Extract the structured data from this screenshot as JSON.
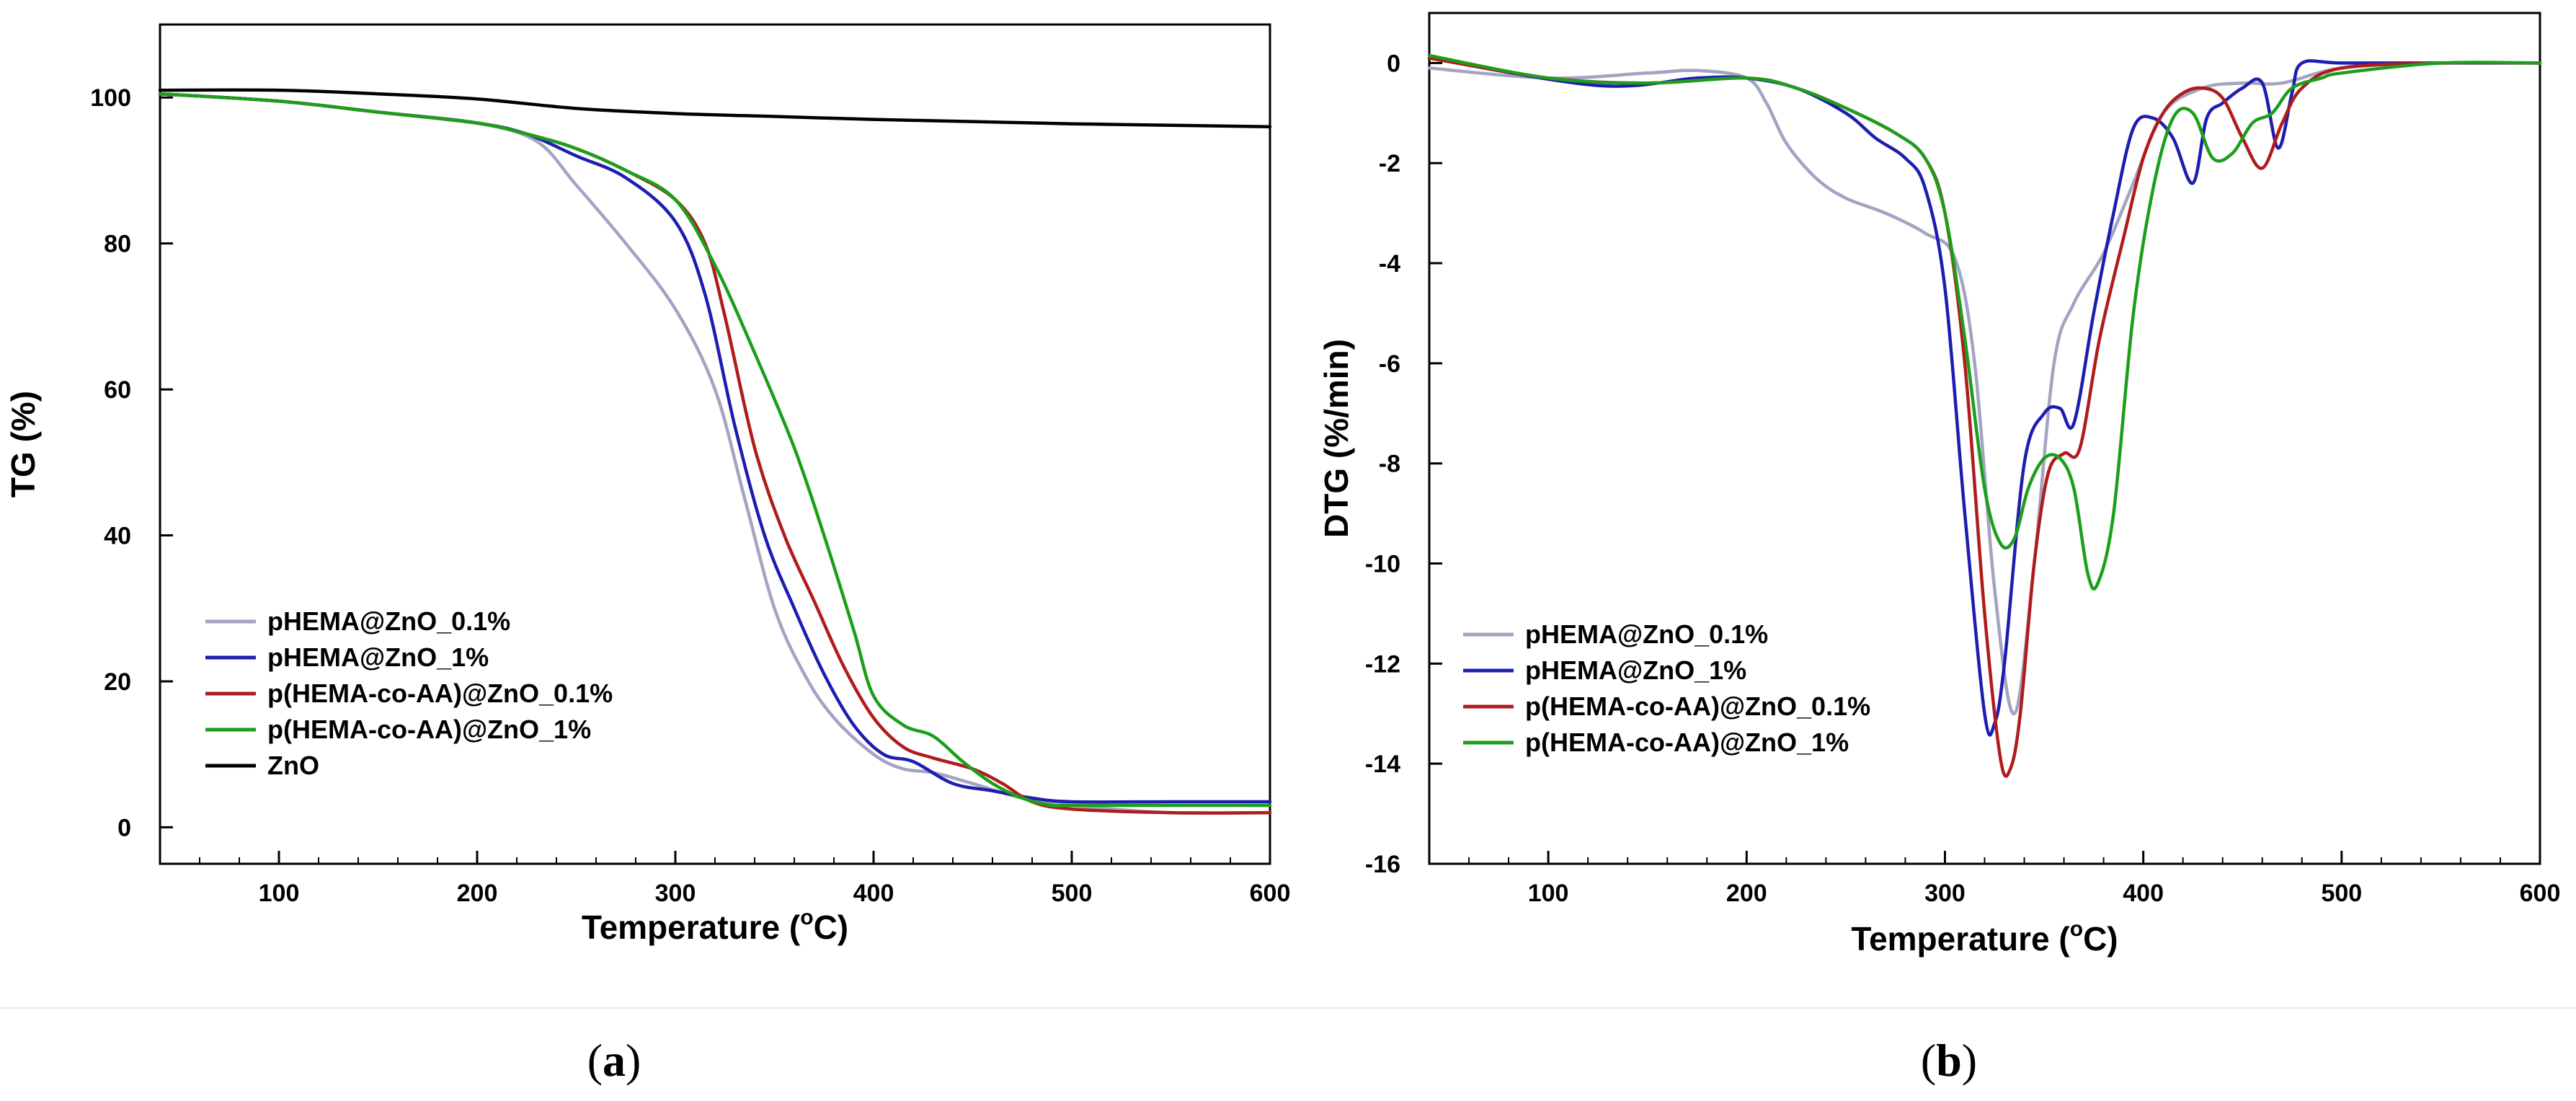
{
  "chart_data": [
    {
      "type": "line",
      "panel_label": "(a)",
      "panel_label_parts": [
        "(",
        "a",
        ")"
      ],
      "xlabel": "Temperature (",
      "xlabel_sup": "o",
      "xlabel_unit": "C)",
      "ylabel": "TG (%)",
      "xlim": [
        40,
        600
      ],
      "ylim": [
        -5,
        110
      ],
      "xticks": [
        100,
        200,
        300,
        400,
        500,
        600
      ],
      "yticks": [
        0,
        20,
        40,
        60,
        80,
        100
      ],
      "legend_position": "lower-left",
      "series": [
        {
          "name": "pHEMA@ZnO_0.1%",
          "color": "#a3a3c2",
          "x": [
            40,
            100,
            150,
            200,
            230,
            250,
            275,
            300,
            320,
            335,
            350,
            365,
            380,
            400,
            415,
            430,
            450,
            475,
            500,
            550,
            600
          ],
          "y": [
            100.5,
            99.5,
            98,
            96.5,
            94,
            88,
            80,
            71,
            60,
            45,
            30,
            21,
            15,
            10,
            8,
            7.5,
            6,
            4,
            3,
            2,
            2
          ]
        },
        {
          "name": "pHEMA@ZnO_1%",
          "color": "#1d1db0",
          "x": [
            40,
            100,
            150,
            200,
            225,
            250,
            275,
            300,
            315,
            330,
            345,
            360,
            375,
            390,
            405,
            420,
            440,
            460,
            480,
            500,
            550,
            600
          ],
          "y": [
            100.5,
            99.5,
            98,
            96.5,
            95,
            92,
            89,
            83,
            73,
            55,
            40,
            30,
            21,
            14,
            10,
            9,
            6,
            5,
            4,
            3.5,
            3.5,
            3.5
          ]
        },
        {
          "name": "p(HEMA-co-AA)@ZnO_0.1%",
          "color": "#b01c1c",
          "x": [
            40,
            100,
            150,
            200,
            225,
            250,
            275,
            300,
            315,
            325,
            340,
            355,
            370,
            385,
            400,
            415,
            430,
            450,
            465,
            480,
            500,
            550,
            600
          ],
          "y": [
            100.5,
            99.5,
            98,
            96.5,
            95,
            93,
            90,
            86,
            80,
            70,
            52,
            40,
            31,
            22,
            15,
            11,
            9.5,
            8,
            6,
            3.5,
            2.5,
            2,
            2
          ]
        },
        {
          "name": "p(HEMA-co-AA)@ZnO_1%",
          "color": "#1c9e1c",
          "x": [
            40,
            100,
            150,
            200,
            225,
            250,
            275,
            300,
            320,
            340,
            360,
            375,
            390,
            400,
            415,
            430,
            445,
            460,
            475,
            490,
            500,
            550,
            600
          ],
          "y": [
            100.5,
            99.5,
            98,
            96.5,
            95,
            93,
            90,
            86,
            77,
            65,
            52,
            40,
            27,
            18,
            14,
            12.5,
            9,
            6,
            4,
            3,
            3,
            3,
            3
          ]
        },
        {
          "name": "ZnO",
          "color": "#000000",
          "x": [
            40,
            100,
            150,
            200,
            250,
            300,
            350,
            400,
            450,
            500,
            550,
            600
          ],
          "y": [
            101,
            101,
            100.5,
            99.8,
            98.5,
            97.8,
            97.4,
            97,
            96.7,
            96.4,
            96.2,
            96
          ]
        }
      ]
    },
    {
      "type": "line",
      "panel_label": "(b)",
      "panel_label_parts": [
        "(",
        "b",
        ")"
      ],
      "xlabel": "Temperature (",
      "xlabel_sup": "o",
      "xlabel_unit": "C)",
      "ylabel": "DTG (%/min)",
      "xlim": [
        40,
        600
      ],
      "ylim": [
        -16,
        1
      ],
      "xticks": [
        100,
        200,
        300,
        400,
        500,
        600
      ],
      "yticks": [
        0,
        -2,
        -4,
        -6,
        -8,
        -10,
        -12,
        -14,
        -16
      ],
      "legend_position": "lower-left",
      "series": [
        {
          "name": "pHEMA@ZnO_0.1%",
          "color": "#a3a3c2",
          "x": [
            40,
            100,
            150,
            175,
            200,
            210,
            220,
            235,
            250,
            270,
            290,
            305,
            315,
            325,
            335,
            345,
            355,
            365,
            380,
            395,
            410,
            430,
            450,
            470,
            500,
            550,
            600
          ],
          "y": [
            -0.1,
            -0.3,
            -0.2,
            -0.15,
            -0.3,
            -0.8,
            -1.6,
            -2.3,
            -2.7,
            -3.0,
            -3.4,
            -3.9,
            -6,
            -10.5,
            -13,
            -10,
            -6,
            -4.8,
            -3.8,
            -2.4,
            -1,
            -0.5,
            -0.4,
            -0.4,
            -0.1,
            0,
            0
          ]
        },
        {
          "name": "pHEMA@ZnO_1%",
          "color": "#1d1db0",
          "x": [
            40,
            125,
            175,
            200,
            225,
            250,
            265,
            280,
            290,
            300,
            310,
            320,
            325,
            330,
            340,
            350,
            358,
            365,
            375,
            385,
            395,
            405,
            415,
            425,
            432,
            440,
            450,
            460,
            468,
            475,
            480,
            500,
            550,
            600
          ],
          "y": [
            0.1,
            -0.45,
            -0.3,
            -0.3,
            -0.5,
            -1.0,
            -1.5,
            -1.9,
            -2.5,
            -4.5,
            -9,
            -13,
            -13.2,
            -12,
            -8,
            -7.0,
            -6.9,
            -7.2,
            -5.0,
            -3,
            -1.3,
            -1.1,
            -1.5,
            -2.4,
            -1.1,
            -0.8,
            -0.5,
            -0.4,
            -1.7,
            -0.6,
            0,
            0,
            0,
            0
          ]
        },
        {
          "name": "p(HEMA-co-AA)@ZnO_0.1%",
          "color": "#b01c1c",
          "x": [
            40,
            100,
            150,
            200,
            225,
            250,
            275,
            290,
            300,
            310,
            320,
            328,
            333,
            338,
            345,
            352,
            360,
            368,
            378,
            390,
            400,
            410,
            420,
            430,
            440,
            450,
            460,
            470,
            480,
            500,
            550,
            600
          ],
          "y": [
            0.1,
            -0.3,
            -0.4,
            -0.3,
            -0.5,
            -0.9,
            -1.4,
            -1.9,
            -3.0,
            -6,
            -11,
            -13.9,
            -14.1,
            -13,
            -10,
            -8.2,
            -7.8,
            -7.7,
            -5.5,
            -3.5,
            -1.9,
            -1.0,
            -0.6,
            -0.5,
            -0.7,
            -1.5,
            -2.1,
            -1.2,
            -0.5,
            -0.1,
            0,
            0
          ]
        },
        {
          "name": "p(HEMA-co-AA)@ZnO_1%",
          "color": "#1c9e1c",
          "x": [
            40,
            100,
            150,
            200,
            225,
            250,
            275,
            290,
            300,
            310,
            320,
            328,
            335,
            342,
            350,
            358,
            365,
            372,
            377,
            385,
            395,
            405,
            415,
            425,
            435,
            445,
            455,
            465,
            475,
            490,
            500,
            550,
            600
          ],
          "y": [
            0.15,
            -0.3,
            -0.4,
            -0.3,
            -0.5,
            -0.9,
            -1.4,
            -1.9,
            -3.0,
            -5.5,
            -8.5,
            -9.6,
            -9.5,
            -8.5,
            -7.9,
            -7.9,
            -8.5,
            -10.2,
            -10.4,
            -9,
            -5,
            -2.5,
            -1.1,
            -1.0,
            -1.9,
            -1.8,
            -1.2,
            -1.0,
            -0.5,
            -0.3,
            -0.2,
            0,
            0
          ]
        }
      ]
    }
  ]
}
